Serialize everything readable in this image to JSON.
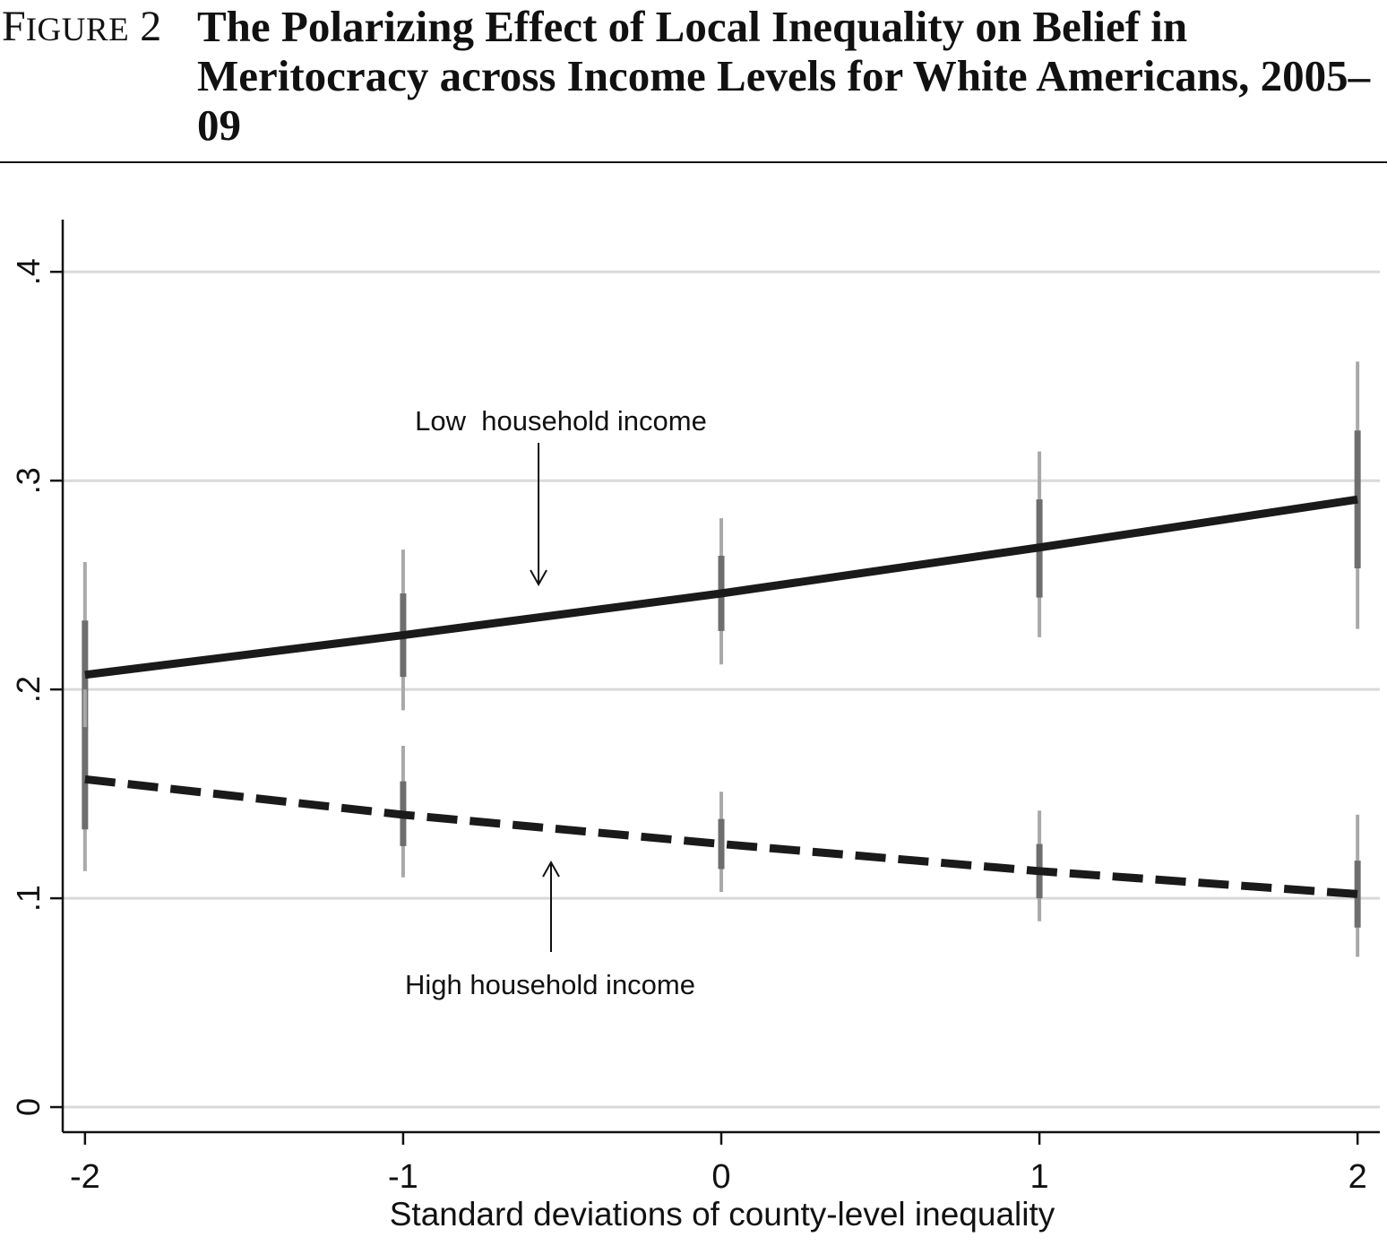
{
  "figure": {
    "label_prefix": "F",
    "label_rest": "IGURE",
    "label_number": "2",
    "title": "The Polarizing Effect of Local Inequality on Belief in Meritocracy across Income Levels for White Americans, 2005–09"
  },
  "chart_data": {
    "type": "line",
    "title": "The Polarizing Effect of Local Inequality on Belief in Meritocracy across Income Levels for White Americans, 2005–09",
    "xlabel": "Standard deviations of county-level inequality",
    "ylabel": "",
    "x": [
      -2,
      -1,
      0,
      1,
      2
    ],
    "x_tick_labels": [
      "-2",
      "-1",
      "0",
      "1",
      "2"
    ],
    "y_ticks": [
      0,
      0.1,
      0.2,
      0.3,
      0.4
    ],
    "y_tick_labels": [
      "0",
      ".1",
      ".2",
      ".3",
      ".4"
    ],
    "xlim": [
      -2.07,
      2.07
    ],
    "ylim": [
      -0.012,
      0.425
    ],
    "grid": true,
    "series": [
      {
        "name": "Low  household income",
        "style": "solid",
        "color": "#1a1a1a",
        "values": [
          0.207,
          0.226,
          0.246,
          0.268,
          0.291
        ],
        "ci_inner": [
          [
            0.181,
            0.233
          ],
          [
            0.206,
            0.246
          ],
          [
            0.228,
            0.264
          ],
          [
            0.244,
            0.291
          ],
          [
            0.258,
            0.324
          ]
        ],
        "ci_outer": [
          [
            0.163,
            0.261
          ],
          [
            0.19,
            0.267
          ],
          [
            0.212,
            0.282
          ],
          [
            0.225,
            0.314
          ],
          [
            0.229,
            0.357
          ]
        ]
      },
      {
        "name": "High household income",
        "style": "dashed",
        "color": "#1a1a1a",
        "values": [
          0.157,
          0.14,
          0.126,
          0.113,
          0.102
        ],
        "ci_inner": [
          [
            0.133,
            0.182
          ],
          [
            0.125,
            0.156
          ],
          [
            0.114,
            0.138
          ],
          [
            0.1,
            0.126
          ],
          [
            0.086,
            0.118
          ]
        ],
        "ci_outer": [
          [
            0.113,
            0.2
          ],
          [
            0.11,
            0.173
          ],
          [
            0.103,
            0.151
          ],
          [
            0.089,
            0.142
          ],
          [
            0.072,
            0.14
          ]
        ]
      }
    ],
    "annotations": [
      {
        "text": "Low  household income",
        "series": 0
      },
      {
        "text": "High household income",
        "series": 1
      }
    ],
    "colors": {
      "ci_inner": "#6e6e6e",
      "ci_outer": "#a9a9a9",
      "grid": "#d9d9d9",
      "axis": "#111111"
    }
  }
}
